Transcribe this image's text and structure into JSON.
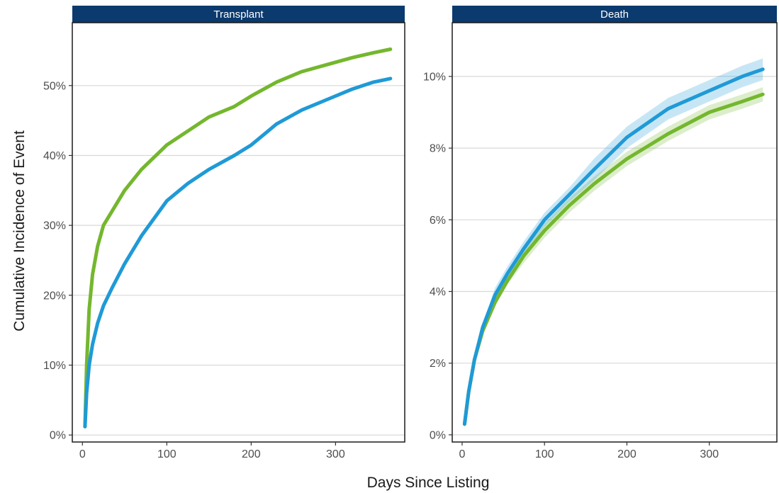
{
  "chart_data": {
    "type": "line",
    "xlabel": "Days Since Listing",
    "ylabel": "Cumulative Incidence of Event",
    "grid": "horizontal-major",
    "colors": {
      "green": "#74b72e",
      "blue": "#1f9ad6",
      "strip": "#0b3a6e",
      "grid": "#d9d9d9"
    },
    "panels": [
      {
        "strip": "Transplant",
        "xlim": [
          -12,
          382
        ],
        "ylim": [
          -0.01,
          0.59
        ],
        "x_ticks": [
          0,
          100,
          200,
          300
        ],
        "y_ticks": [
          0,
          0.1,
          0.2,
          0.3,
          0.4,
          0.5
        ],
        "y_tick_labels": [
          "0%",
          "10%",
          "20%",
          "30%",
          "40%",
          "50%"
        ],
        "series": [
          {
            "color": "green",
            "x": [
              3,
              5,
              8,
              12,
              18,
              25,
              35,
              50,
              70,
              100,
              125,
              150,
              180,
              200,
              230,
              260,
              290,
              320,
              345,
              365
            ],
            "y": [
              0.012,
              0.1,
              0.18,
              0.23,
              0.27,
              0.3,
              0.32,
              0.35,
              0.38,
              0.415,
              0.435,
              0.455,
              0.47,
              0.485,
              0.505,
              0.52,
              0.53,
              0.54,
              0.547,
              0.552
            ]
          },
          {
            "color": "blue",
            "x": [
              3,
              5,
              8,
              12,
              18,
              25,
              35,
              50,
              70,
              100,
              125,
              150,
              180,
              200,
              230,
              260,
              290,
              320,
              345,
              365
            ],
            "y": [
              0.012,
              0.06,
              0.1,
              0.13,
              0.16,
              0.185,
              0.21,
              0.245,
              0.285,
              0.335,
              0.36,
              0.38,
              0.4,
              0.415,
              0.445,
              0.465,
              0.48,
              0.495,
              0.505,
              0.51
            ]
          }
        ]
      },
      {
        "strip": "Death",
        "xlim": [
          -12,
          382
        ],
        "ylim": [
          -0.002,
          0.115
        ],
        "x_ticks": [
          0,
          100,
          200,
          300
        ],
        "y_ticks": [
          0,
          0.02,
          0.04,
          0.06,
          0.08,
          0.1
        ],
        "y_tick_labels": [
          "0%",
          "2%",
          "4%",
          "6%",
          "8%",
          "10%"
        ],
        "series": [
          {
            "color": "green",
            "x": [
              3,
              8,
              15,
              25,
              40,
              55,
              75,
              100,
              130,
              160,
              200,
              250,
              300,
              340,
              365
            ],
            "y": [
              0.003,
              0.012,
              0.021,
              0.029,
              0.037,
              0.043,
              0.05,
              0.057,
              0.064,
              0.07,
              0.077,
              0.084,
              0.09,
              0.093,
              0.095
            ],
            "ci_lower": [
              0.002,
              0.011,
              0.02,
              0.028,
              0.036,
              0.042,
              0.048,
              0.055,
              0.062,
              0.068,
              0.075,
              0.082,
              0.088,
              0.091,
              0.093
            ],
            "ci_upper": [
              0.004,
              0.013,
              0.022,
              0.03,
              0.038,
              0.044,
              0.052,
              0.059,
              0.066,
              0.072,
              0.079,
              0.086,
              0.092,
              0.095,
              0.097
            ]
          },
          {
            "color": "blue",
            "x": [
              3,
              8,
              15,
              25,
              40,
              55,
              75,
              100,
              130,
              160,
              200,
              250,
              300,
              340,
              365
            ],
            "y": [
              0.003,
              0.012,
              0.021,
              0.03,
              0.039,
              0.045,
              0.052,
              0.06,
              0.067,
              0.074,
              0.083,
              0.091,
              0.096,
              0.1,
              0.102
            ],
            "ci_lower": [
              0.002,
              0.011,
              0.02,
              0.028,
              0.037,
              0.043,
              0.05,
              0.058,
              0.065,
              0.071,
              0.08,
              0.088,
              0.093,
              0.097,
              0.099
            ],
            "ci_upper": [
              0.004,
              0.013,
              0.022,
              0.031,
              0.041,
              0.047,
              0.054,
              0.062,
              0.069,
              0.077,
              0.086,
              0.094,
              0.099,
              0.103,
              0.105
            ]
          }
        ]
      }
    ]
  }
}
